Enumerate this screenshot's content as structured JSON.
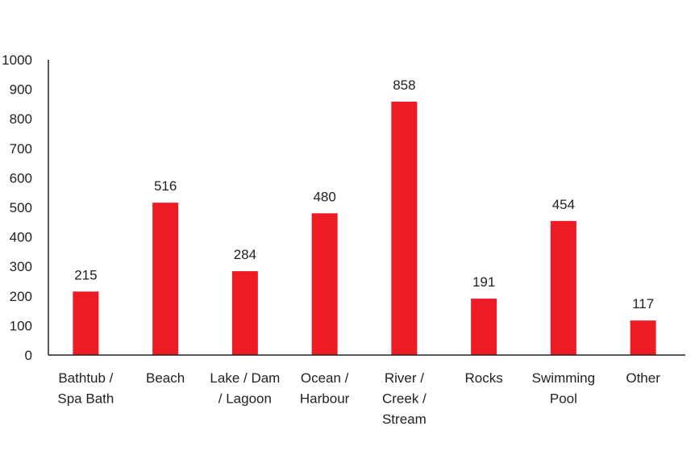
{
  "colors": {
    "bar": "#ed1c24",
    "axis": "#222222",
    "text": "#222222",
    "background": "#ffffff"
  },
  "chart_data": {
    "type": "bar",
    "title": "",
    "xlabel": "",
    "ylabel": "",
    "ylim": [
      0,
      1000
    ],
    "yticks": [
      "0",
      "100",
      "200",
      "300",
      "400",
      "500",
      "600",
      "700",
      "800",
      "900",
      "1000"
    ],
    "grid": false,
    "legend": "none",
    "categories": [
      [
        "Bathtub /",
        "Spa Bath"
      ],
      [
        "Beach"
      ],
      [
        "Lake / Dam",
        "/ Lagoon"
      ],
      [
        "Ocean /",
        "Harbour"
      ],
      [
        "River /",
        "Creek /",
        "Stream"
      ],
      [
        "Rocks"
      ],
      [
        "Swimming",
        "Pool"
      ],
      [
        "Other"
      ]
    ],
    "values": [
      215,
      516,
      284,
      480,
      858,
      191,
      454,
      117
    ],
    "data_labels": [
      "215",
      "516",
      "284",
      "480",
      "858",
      "191",
      "454",
      "117"
    ]
  }
}
